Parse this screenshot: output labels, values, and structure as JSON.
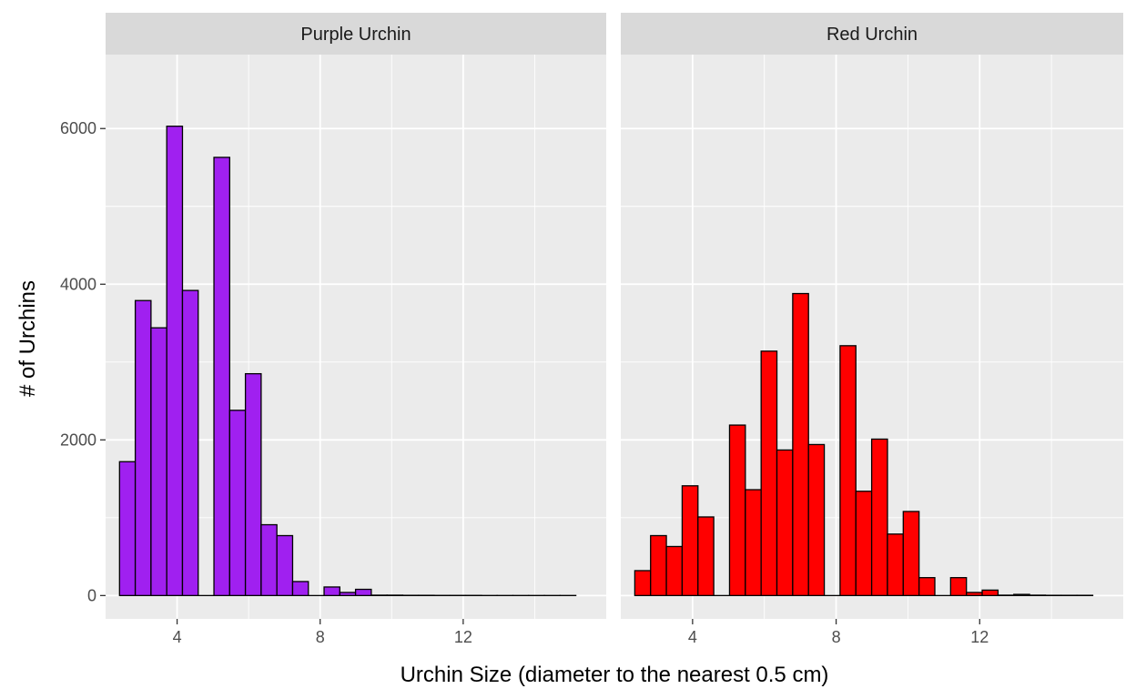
{
  "chart_data": {
    "type": "bar",
    "xlabel": "Urchin Size (diameter to the nearest 0.5 cm)",
    "ylabel": "# of Urchins",
    "xlim": [
      2,
      16
    ],
    "ylim": [
      -300,
      6950
    ],
    "x_ticks": [
      4,
      8,
      12
    ],
    "y_ticks": [
      0,
      2000,
      4000,
      6000
    ],
    "grid": true,
    "bin_width": 0.44,
    "panels": [
      {
        "title": "Purple Urchin",
        "fill": "#A020F0",
        "bins": [
          {
            "x": 2.61,
            "y": 1720
          },
          {
            "x": 3.05,
            "y": 3790
          },
          {
            "x": 3.49,
            "y": 3440
          },
          {
            "x": 3.93,
            "y": 6030
          },
          {
            "x": 4.37,
            "y": 3920
          },
          {
            "x": 4.81,
            "y": 0
          },
          {
            "x": 5.25,
            "y": 5630
          },
          {
            "x": 5.69,
            "y": 2380
          },
          {
            "x": 6.13,
            "y": 2850
          },
          {
            "x": 6.57,
            "y": 910
          },
          {
            "x": 7.01,
            "y": 770
          },
          {
            "x": 7.45,
            "y": 180
          },
          {
            "x": 7.89,
            "y": 0
          },
          {
            "x": 8.33,
            "y": 110
          },
          {
            "x": 8.77,
            "y": 40
          },
          {
            "x": 9.21,
            "y": 80
          },
          {
            "x": 9.65,
            "y": 5
          },
          {
            "x": 10.09,
            "y": 5
          },
          {
            "x": 10.53,
            "y": 3
          },
          {
            "x": 10.97,
            "y": 3
          },
          {
            "x": 11.41,
            "y": 2
          },
          {
            "x": 11.85,
            "y": 2
          },
          {
            "x": 12.29,
            "y": 2
          },
          {
            "x": 12.73,
            "y": 1
          },
          {
            "x": 13.17,
            "y": 1
          },
          {
            "x": 13.61,
            "y": 1
          },
          {
            "x": 14.05,
            "y": 1
          },
          {
            "x": 14.49,
            "y": 1
          },
          {
            "x": 14.93,
            "y": 1
          }
        ]
      },
      {
        "title": "Red Urchin",
        "fill": "#FF0000",
        "bins": [
          {
            "x": 2.61,
            "y": 320
          },
          {
            "x": 3.05,
            "y": 770
          },
          {
            "x": 3.49,
            "y": 630
          },
          {
            "x": 3.93,
            "y": 1410
          },
          {
            "x": 4.37,
            "y": 1010
          },
          {
            "x": 4.81,
            "y": 0
          },
          {
            "x": 5.25,
            "y": 2190
          },
          {
            "x": 5.69,
            "y": 1360
          },
          {
            "x": 6.13,
            "y": 3140
          },
          {
            "x": 6.57,
            "y": 1870
          },
          {
            "x": 7.01,
            "y": 3880
          },
          {
            "x": 7.45,
            "y": 1940
          },
          {
            "x": 7.89,
            "y": 0
          },
          {
            "x": 8.33,
            "y": 3210
          },
          {
            "x": 8.77,
            "y": 1340
          },
          {
            "x": 9.21,
            "y": 2010
          },
          {
            "x": 9.65,
            "y": 790
          },
          {
            "x": 10.09,
            "y": 1080
          },
          {
            "x": 10.53,
            "y": 230
          },
          {
            "x": 10.97,
            "y": 0
          },
          {
            "x": 11.41,
            "y": 230
          },
          {
            "x": 11.85,
            "y": 40
          },
          {
            "x": 12.29,
            "y": 70
          },
          {
            "x": 12.73,
            "y": 5
          },
          {
            "x": 13.17,
            "y": 15
          },
          {
            "x": 13.61,
            "y": 5
          },
          {
            "x": 14.05,
            "y": 3
          },
          {
            "x": 14.49,
            "y": 3
          },
          {
            "x": 14.93,
            "y": 3
          }
        ]
      }
    ]
  }
}
